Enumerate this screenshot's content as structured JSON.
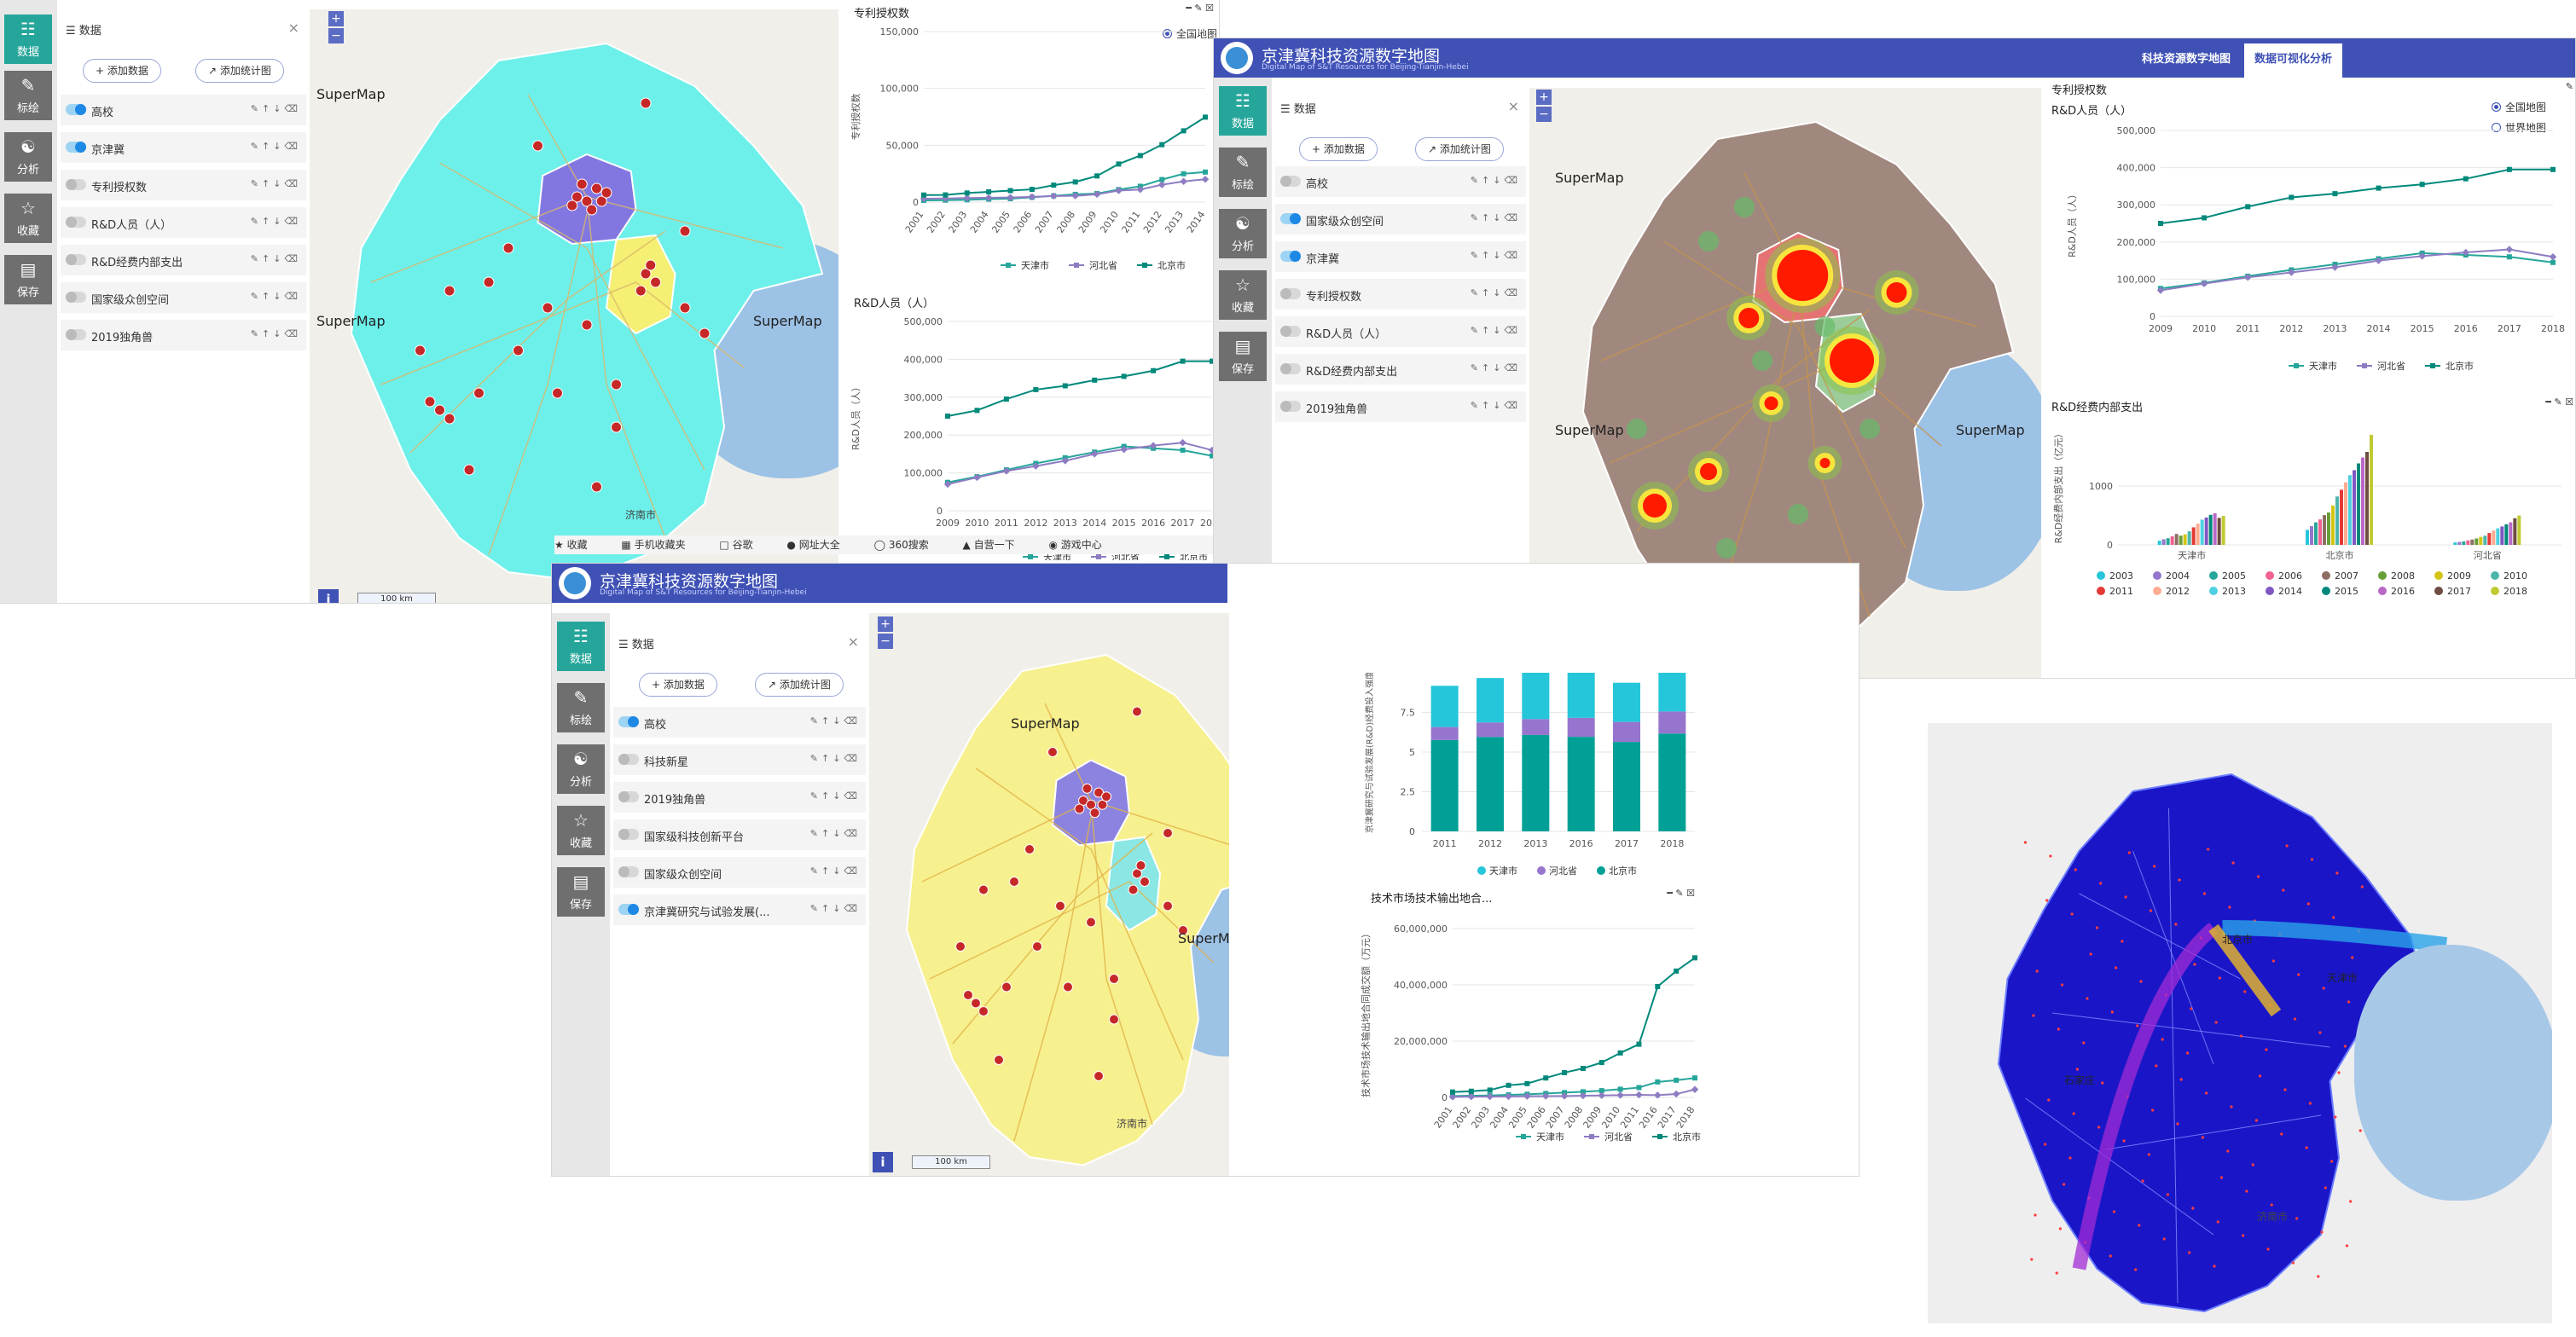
{
  "app": {
    "title": "京津冀科技资源数字地图",
    "subtitle": "Digital Map of S&T Resources for Beijing-Tianjin-Hebei",
    "tabs": [
      "科技资源数字地图",
      "数据可视化分析"
    ]
  },
  "rail": [
    "数据",
    "标绘",
    "分析",
    "收藏",
    "保存"
  ],
  "panel": {
    "title": "数据",
    "add_data": "添加数据",
    "add_chart": "添加统计图"
  },
  "layers": {
    "w1": [
      "高校",
      "京津冀",
      "专利授权数",
      "R&D人员（人）",
      "R&D经费内部支出",
      "国家级众创空间",
      "2019独角兽"
    ],
    "w2": [
      "高校",
      "国家级众创空间",
      "京津冀",
      "专利授权数",
      "R&D人员（人）",
      "R&D经费内部支出",
      "2019独角兽"
    ],
    "w3": [
      "高校",
      "科技新星",
      "2019独角兽",
      "国家级科技创新平台",
      "国家级众创空间",
      "京津冀研究与试验发展(..."
    ]
  },
  "map": {
    "supermap": "SuperMap",
    "jinan": "济南市",
    "scale": "100 km",
    "info": "i",
    "zoom_in": "+",
    "zoom_out": "−",
    "flow_labels": [
      "北京市",
      "天津市",
      "石家庄"
    ]
  },
  "bookmarks": [
    "收藏",
    "手机收藏夹",
    "谷歌",
    "网址大全",
    "360搜索",
    "自营一下",
    "游戏中心"
  ],
  "radio": [
    "全国地图",
    "世界地图"
  ],
  "colors": {
    "brand": "#3f51b5",
    "accent": "#26a69a",
    "tianjin": "#26a69a",
    "hebei": "#8e7cc3",
    "beijing": "#00897b",
    "hebei_fill": "#6ef0ea",
    "beijing_fill": "#8277e0",
    "tianjin_fill": "#f5ef73"
  },
  "chart_data": [
    {
      "id": "patent",
      "type": "line",
      "title": "专利授权数",
      "ylabel": "专利授权数",
      "x": [
        "2001",
        "2002",
        "2003",
        "2004",
        "2005",
        "2006",
        "2007",
        "2008",
        "2009",
        "2010",
        "2011",
        "2012",
        "2013",
        "2014"
      ],
      "ylim": [
        0,
        150000
      ],
      "yticks": [
        "0",
        "50,000",
        "100,000",
        "150,000"
      ],
      "series": [
        {
          "name": "天津市",
          "values": [
            1500,
            1700,
            2000,
            2600,
            3000,
            4200,
            5500,
            6800,
            7500,
            11000,
            13900,
            19800,
            24900,
            26400
          ]
        },
        {
          "name": "河北省",
          "values": [
            3000,
            3200,
            3600,
            3800,
            4000,
            4600,
            5300,
            5500,
            6800,
            10100,
            11100,
            15300,
            18200,
            20100
          ]
        },
        {
          "name": "北京市",
          "values": [
            6200,
            6300,
            8000,
            9000,
            10100,
            11200,
            14900,
            17700,
            23000,
            33500,
            40900,
            50500,
            62700,
            74700
          ]
        }
      ]
    },
    {
      "id": "rd",
      "type": "line",
      "title": "R&D人员（人）",
      "ylabel": "R&D人员（人）",
      "x": [
        "2009",
        "2010",
        "2011",
        "2012",
        "2013",
        "2014",
        "2015",
        "2016",
        "2017",
        "2018"
      ],
      "ylim": [
        0,
        500000
      ],
      "yticks": [
        "0",
        "100,000",
        "200,000",
        "300,000",
        "400,000",
        "500,000"
      ],
      "series": [
        {
          "name": "天津市",
          "values": [
            75000,
            90000,
            108000,
            125000,
            140000,
            155000,
            170000,
            165000,
            160000,
            145000
          ]
        },
        {
          "name": "河北省",
          "values": [
            70000,
            88000,
            105000,
            118000,
            132000,
            150000,
            162000,
            172000,
            180000,
            160000
          ]
        },
        {
          "name": "北京市",
          "values": [
            250000,
            265000,
            295000,
            320000,
            330000,
            345000,
            355000,
            370000,
            395000,
            395000
          ]
        }
      ]
    },
    {
      "id": "rdexp",
      "type": "bar",
      "title": "R&D经费内部支出",
      "ylabel": "R&D经费内部支出（亿元）",
      "categories": [
        "天津市",
        "北京市",
        "河北省"
      ],
      "ylim": [
        0,
        2000
      ],
      "yticks": [
        "0",
        "1000"
      ],
      "series": [
        {
          "name": "2003",
          "values": [
            70,
            255,
            42
          ]
        },
        {
          "name": "2004",
          "values": [
            95,
            317,
            50
          ]
        },
        {
          "name": "2005",
          "values": [
            113,
            382,
            58
          ]
        },
        {
          "name": "2006",
          "values": [
            145,
            433,
            76
          ]
        },
        {
          "name": "2007",
          "values": [
            185,
            505,
            90
          ]
        },
        {
          "name": "2008",
          "values": [
            156,
            550,
            109
          ]
        },
        {
          "name": "2009",
          "values": [
            178,
            669,
            135
          ]
        },
        {
          "name": "2010",
          "values": [
            230,
            822,
            155
          ]
        },
        {
          "name": "2011",
          "values": [
            298,
            937,
            201
          ]
        },
        {
          "name": "2012",
          "values": [
            360,
            1063,
            245
          ]
        },
        {
          "name": "2013",
          "values": [
            428,
            1185,
            281
          ]
        },
        {
          "name": "2014",
          "values": [
            465,
            1269,
            313
          ]
        },
        {
          "name": "2015",
          "values": [
            510,
            1384,
            350
          ]
        },
        {
          "name": "2016",
          "values": [
            537,
            1485,
            383
          ]
        },
        {
          "name": "2017",
          "values": [
            458,
            1580,
            452
          ]
        },
        {
          "name": "2018",
          "values": [
            492,
            1871,
            499
          ]
        }
      ]
    },
    {
      "id": "stack",
      "type": "bar",
      "title": "",
      "ylabel": "京津冀研究与试验发展(R&D)经费投入强度",
      "categories": [
        "2011",
        "2012",
        "2013",
        "2016",
        "2017",
        "2018"
      ],
      "ylim": [
        0,
        10
      ],
      "yticks": [
        "0",
        "2.5",
        "5",
        "7.5"
      ],
      "series": [
        {
          "name": "天津市",
          "values": [
            2.6,
            2.8,
            2.98,
            3.0,
            2.47,
            2.62
          ]
        },
        {
          "name": "河北省",
          "values": [
            0.82,
            0.92,
            1.0,
            1.2,
            1.26,
            1.39
          ]
        },
        {
          "name": "北京市",
          "values": [
            5.76,
            5.95,
            6.08,
            5.96,
            5.64,
            6.17
          ]
        }
      ]
    },
    {
      "id": "tech",
      "type": "line",
      "title": "技术市场技术输出地合...",
      "ylabel": "技术市场技术输出地合同成交额（万元）",
      "x": [
        "2001",
        "2002",
        "2003",
        "2004",
        "2005",
        "2006",
        "2007",
        "2008",
        "2009",
        "2010",
        "2011",
        "2016",
        "2017",
        "2018"
      ],
      "ylim": [
        0,
        60000000
      ],
      "yticks": [
        "0",
        "20,000,000",
        "40,000,000",
        "60,000,000"
      ],
      "series": [
        {
          "name": "天津市",
          "values": [
            500000,
            600000,
            700000,
            900000,
            1100000,
            1400000,
            1700000,
            2000000,
            2400000,
            2900000,
            3500000,
            5500000,
            6100000,
            6900000
          ]
        },
        {
          "name": "河北省",
          "values": [
            200000,
            250000,
            300000,
            350000,
            400000,
            450000,
            500000,
            600000,
            700000,
            800000,
            900000,
            800000,
            1200000,
            2800000
          ]
        },
        {
          "name": "北京市",
          "values": [
            1900000,
            2200000,
            2600000,
            4300000,
            4900000,
            6900000,
            8800000,
            10300000,
            12400000,
            15800000,
            18900000,
            39400000,
            44900000,
            49600000
          ]
        }
      ]
    }
  ]
}
